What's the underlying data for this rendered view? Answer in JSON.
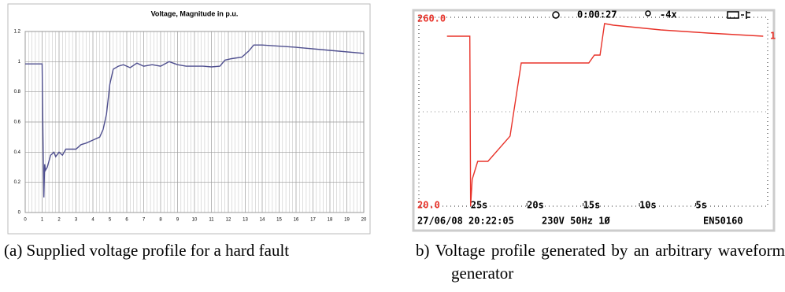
{
  "chart_data": [
    {
      "type": "line",
      "title": "Voltage, Magnitude in p.u.",
      "x": [
        0,
        1.0,
        1.05,
        1.1,
        1.15,
        1.2,
        1.3,
        1.5,
        1.7,
        1.8,
        2.0,
        2.2,
        2.4,
        2.8,
        3.0,
        3.3,
        3.6,
        4.0,
        4.4,
        4.6,
        4.8,
        5.0,
        5.2,
        5.5,
        5.8,
        6.2,
        6.6,
        7.0,
        7.5,
        8.0,
        8.5,
        9.0,
        9.5,
        10.0,
        10.5,
        11.0,
        11.5,
        11.8,
        12.2,
        12.8,
        13.2,
        13.5,
        14,
        16,
        18,
        20
      ],
      "series": [
        {
          "color": "#4f4f8f",
          "values": [
            0.985,
            0.985,
            0.5,
            0.1,
            0.32,
            0.28,
            0.3,
            0.38,
            0.4,
            0.37,
            0.4,
            0.38,
            0.42,
            0.42,
            0.42,
            0.45,
            0.46,
            0.48,
            0.5,
            0.55,
            0.65,
            0.85,
            0.95,
            0.97,
            0.98,
            0.96,
            0.99,
            0.97,
            0.98,
            0.97,
            1.0,
            0.98,
            0.97,
            0.97,
            0.97,
            0.965,
            0.97,
            1.01,
            1.02,
            1.03,
            1.07,
            1.11,
            1.11,
            1.095,
            1.075,
            1.055
          ]
        }
      ],
      "xlim": [
        0,
        20
      ],
      "xticks": [
        0,
        1,
        2,
        3,
        4,
        5,
        6,
        7,
        8,
        9,
        10,
        11,
        12,
        13,
        14,
        15,
        16,
        17,
        18,
        19,
        20
      ],
      "ylim": [
        0,
        1.2
      ],
      "yticks": [
        0,
        0.2,
        0.4,
        0.6,
        0.8,
        1,
        1.2
      ],
      "grid": true
    },
    {
      "type": "scope",
      "x": [
        27.1,
        25.07,
        25,
        24.86,
        24.37,
        23.46,
        21.5,
        20.5,
        14.5,
        14.0,
        13.5,
        13.1,
        12.3,
        8.1,
        3.9,
        -1.0
      ],
      "series": [
        {
          "color": "#e8332a",
          "values": [
            236,
            236,
            20,
            54,
            77,
            77,
            109,
            202,
            202,
            212,
            212,
            252,
            250,
            244,
            240,
            236
          ]
        }
      ],
      "xlim": [
        29.6,
        -1.4
      ],
      "xticks": [
        {
          "value": 25,
          "label": "25s"
        },
        {
          "value": 20,
          "label": "20s"
        },
        {
          "value": 15,
          "label": "15s"
        },
        {
          "value": 10,
          "label": "10s"
        },
        {
          "value": 5,
          "label": "5s"
        }
      ],
      "ylim": [
        20,
        260
      ],
      "yticks": [
        {
          "value": 20,
          "label": "20.0"
        },
        {
          "value": 260,
          "label": "260.0"
        }
      ],
      "elapsed": "0:00:27",
      "zoom": "-4x",
      "trace_label": "1",
      "footer": [
        "27/06/08 20:22:05",
        "230V 50Hz 1Ø",
        "EN50160"
      ]
    }
  ],
  "captions": [
    "(a) Supplied voltage profile for a hard fault",
    "b) Voltage profile generated by an arbitrary waveform generator"
  ]
}
